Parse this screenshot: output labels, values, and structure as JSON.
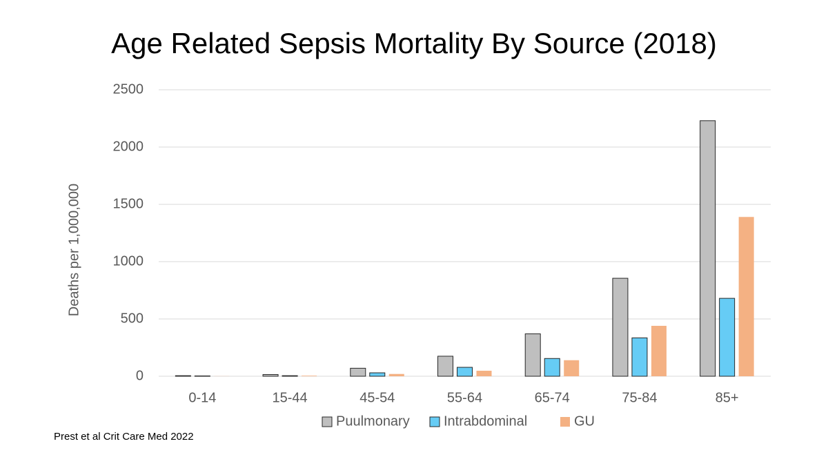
{
  "chart_data": {
    "type": "bar",
    "title": "Age Related Sepsis Mortality By Source (2018)",
    "y_label": "Deaths per 1,000,000",
    "source": "Prest et al Crit Care Med 2022",
    "categories": [
      "0-14",
      "15-44",
      "45-54",
      "55-64",
      "65-74",
      "75-84",
      "85+"
    ],
    "series": [
      {
        "name": "Puulmonary",
        "color": "#bfbfbf",
        "edgecolor": "#262626",
        "values": [
          5,
          15,
          70,
          175,
          370,
          855,
          2230
        ]
      },
      {
        "name": "Intrabdominal",
        "color": "#66ccf5",
        "edgecolor": "#262626",
        "values": [
          3,
          5,
          30,
          78,
          155,
          335,
          680
        ]
      },
      {
        "name": "GU",
        "color": "#f4b183",
        "edgecolor": "none",
        "values": [
          1,
          5,
          20,
          48,
          140,
          440,
          1390
        ]
      }
    ],
    "ylim": [
      0,
      2500
    ],
    "yticks": [
      0,
      500,
      1000,
      1500,
      2000,
      2500
    ],
    "grid": true,
    "legend": "bottom"
  }
}
